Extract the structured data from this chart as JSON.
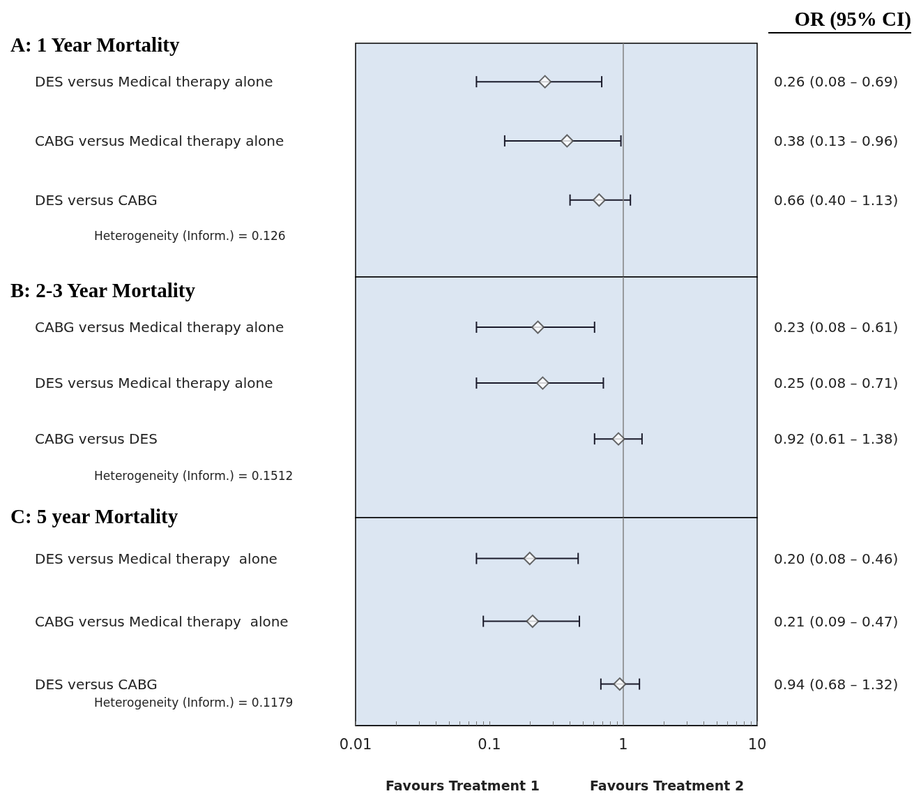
{
  "chart_data": [
    {
      "type": "scatter",
      "orientation": "horizontal",
      "title": "A: 1 Year Mortality",
      "categories": [
        "DES versus Medical therapy alone",
        "CABG versus Medical therapy alone",
        "DES versus CABG"
      ],
      "series": [
        {
          "color": "#ffffff",
          "values": [
            0.26,
            0.38,
            0.66
          ],
          "errors": [
            [
              0.08,
              0.69
            ],
            [
              0.13,
              0.96
            ],
            [
              0.4,
              1.13
            ]
          ],
          "value_labels": [
            "0.26 (0.08 – 0.69)",
            "0.38 (0.13 – 0.96)",
            "0.66 (0.40 – 1.13)"
          ]
        }
      ],
      "log": "x",
      "xlim": [
        0.01,
        10
      ],
      "tick_labels": "y",
      "marker": "diamond",
      "grid": false,
      "ref_lines": [
        {
          "axis": "x",
          "value": 1,
          "color": "#808080"
        }
      ],
      "annotations": [
        "Heterogeneity (Inform.) = 0.126",
        "OR (95% CI)"
      ]
    },
    {
      "type": "scatter",
      "orientation": "horizontal",
      "title": "B: 2-3 Year Mortality",
      "categories": [
        "CABG versus Medical therapy alone",
        "DES versus Medical therapy alone",
        "CABG versus DES"
      ],
      "series": [
        {
          "color": "#ffffff",
          "values": [
            0.23,
            0.25,
            0.92
          ],
          "errors": [
            [
              0.08,
              0.61
            ],
            [
              0.08,
              0.71
            ],
            [
              0.61,
              1.38
            ]
          ],
          "value_labels": [
            "0.23 (0.08 – 0.61)",
            "0.25 (0.08 – 0.71)",
            "0.92 (0.61 – 1.38)"
          ]
        }
      ],
      "log": "x",
      "xlim": [
        0.01,
        10
      ],
      "tick_labels": "y",
      "marker": "diamond",
      "grid": false,
      "ref_lines": [
        {
          "axis": "x",
          "value": 1,
          "color": "#808080"
        }
      ],
      "annotations": [
        "Heterogeneity (Inform.) = 0.1512"
      ]
    },
    {
      "type": "scatter",
      "orientation": "horizontal",
      "title": "C: 5 year Mortality",
      "categories": [
        "DES versus Medical therapy  alone",
        "CABG versus Medical therapy  alone",
        "DES versus CABG"
      ],
      "series": [
        {
          "color": "#ffffff",
          "values": [
            0.2,
            0.21,
            0.94
          ],
          "errors": [
            [
              0.08,
              0.46
            ],
            [
              0.09,
              0.47
            ],
            [
              0.68,
              1.32
            ]
          ],
          "value_labels": [
            "0.20 (0.08 – 0.46)",
            "0.21 (0.09 – 0.47)",
            "0.94 (0.68 – 1.32)"
          ]
        }
      ],
      "log": "x",
      "xlim": [
        0.01,
        10
      ],
      "marker": "diamond",
      "grid": false,
      "xticks": [
        0.01,
        {
          "value": 0.02,
          "label": null
        },
        {
          "value": 0.03,
          "label": null
        },
        {
          "value": 0.04,
          "label": null
        },
        {
          "value": 0.05,
          "label": null
        },
        {
          "value": 0.06,
          "label": null
        },
        {
          "value": 0.07,
          "label": null
        },
        {
          "value": 0.08,
          "label": null
        },
        {
          "value": 0.09,
          "label": null
        },
        0.1,
        {
          "value": 0.2,
          "label": null
        },
        {
          "value": 0.3,
          "label": null
        },
        {
          "value": 0.4,
          "label": null
        },
        {
          "value": 0.5,
          "label": null
        },
        {
          "value": 0.6,
          "label": null
        },
        {
          "value": 0.7,
          "label": null
        },
        {
          "value": 0.8,
          "label": null
        },
        {
          "value": 0.9,
          "label": null
        },
        1,
        {
          "value": 2,
          "label": null
        },
        {
          "value": 3,
          "label": null
        },
        {
          "value": 4,
          "label": null
        },
        {
          "value": 5,
          "label": null
        },
        {
          "value": 6,
          "label": null
        },
        {
          "value": 7,
          "label": null
        },
        {
          "value": 8,
          "label": null
        },
        {
          "value": 9,
          "label": null
        },
        10
      ],
      "ref_lines": [
        {
          "axis": "x",
          "value": 1,
          "color": "#808080"
        }
      ],
      "annotations": [
        "Heterogeneity (Inform.) = 0.1179",
        "Favours Treatment 1",
        "Favours Treatment 2"
      ]
    }
  ]
}
